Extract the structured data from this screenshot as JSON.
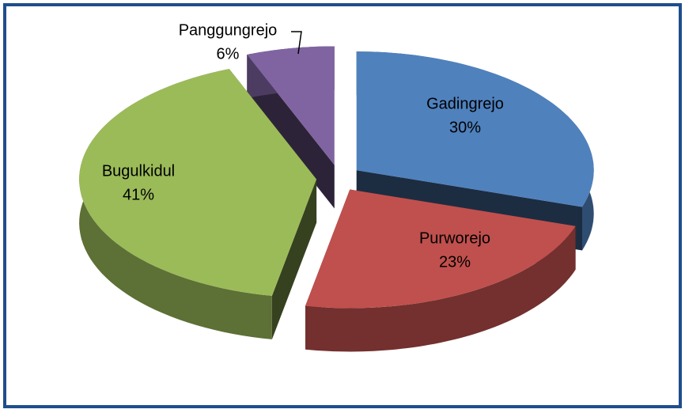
{
  "chart_data": {
    "type": "pie",
    "categories": [
      "Gadingrejo",
      "Purworejo",
      "Bugulkidul",
      "Panggungrejo"
    ],
    "values": [
      30,
      23,
      41,
      6
    ],
    "value_labels": [
      "30%",
      "23%",
      "41%",
      "6%"
    ],
    "colors": [
      "#4f81bd",
      "#c0504d",
      "#9bbb59",
      "#8064a2"
    ],
    "exploded": true,
    "three_d": true
  }
}
